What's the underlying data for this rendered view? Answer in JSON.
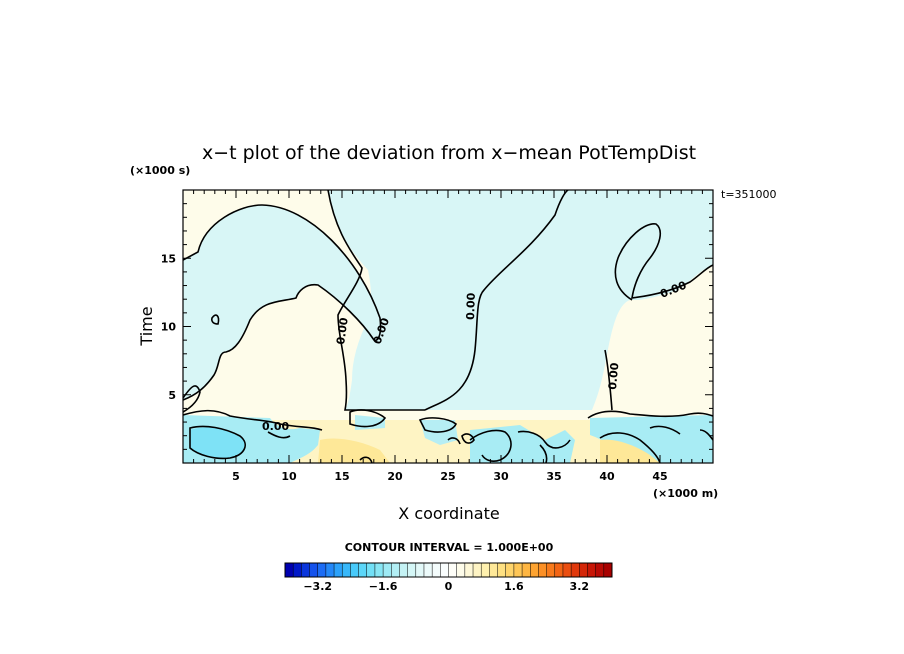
{
  "chart_data": {
    "type": "heatmap",
    "title": "x−t plot of the deviation from x−mean PotTempDist",
    "xlabel": "X coordinate",
    "ylabel": "Time",
    "x_unit": "(×1000 m)",
    "y_unit": "(×1000 s)",
    "time_label": "t=351000",
    "xlim": [
      0,
      50
    ],
    "ylim": [
      0,
      20
    ],
    "x_ticks": [
      5,
      10,
      15,
      20,
      25,
      30,
      35,
      40,
      45
    ],
    "y_ticks": [
      5,
      10,
      15
    ],
    "x_tick_labels": [
      "5",
      "10",
      "15",
      "20",
      "25",
      "30",
      "35",
      "40",
      "45"
    ],
    "y_tick_labels": [
      "5",
      "10",
      "15"
    ],
    "contour_label": "0.00",
    "contour_interval_text": "CONTOUR INTERVAL = 1.000E+00",
    "colorbar": {
      "min": -4,
      "max": 4,
      "bins": 40,
      "tick_values": [
        -3.2,
        -1.6,
        0,
        1.6,
        3.2
      ],
      "tick_labels": [
        "−3.2",
        "−1.6",
        "0",
        "1.6",
        "3.2"
      ],
      "colors": [
        "#0000b0",
        "#0018c8",
        "#0a36dc",
        "#1452ec",
        "#1c6cf4",
        "#2488f8",
        "#2ca2fa",
        "#38b8fa",
        "#48cafa",
        "#5cd6f8",
        "#72e0f6",
        "#88e6f4",
        "#9eeaf4",
        "#b2eef4",
        "#c4f2f4",
        "#d4f6f6",
        "#e2f8f8",
        "#ecfafa",
        "#f4fcfc",
        "#fafefe",
        "#fefef8",
        "#fefcea",
        "#fef8d8",
        "#fef4c4",
        "#fef0ae",
        "#fee898",
        "#fee082",
        "#fed46c",
        "#fec656",
        "#feb642",
        "#fea432",
        "#fc9026",
        "#f87a1c",
        "#f26414",
        "#ea4e10",
        "#e0380c",
        "#d42608",
        "#c81606",
        "#b80a04",
        "#a80000"
      ]
    },
    "regions": [
      {
        "value": -0.5,
        "description": "upper-middle and right-lobe negative deviation"
      },
      {
        "value": 0.4,
        "description": "left and right positive deviation"
      }
    ]
  }
}
